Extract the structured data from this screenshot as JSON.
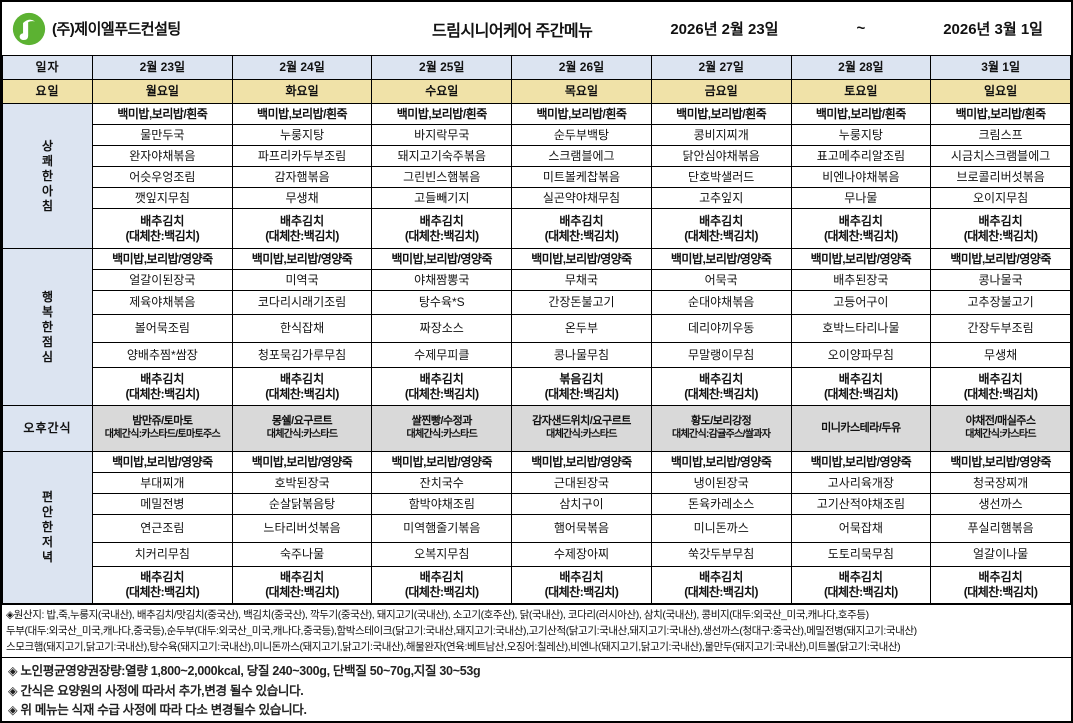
{
  "header": {
    "company": "(주)제이엘푸드컨설팅",
    "title": "드림시니어케어 주간메뉴",
    "date_start": "2026년 2월 23일",
    "tilde": "~",
    "date_end": "2026년 3월 1일",
    "logo_color": "#5cb232"
  },
  "colors": {
    "label_blue": "#dce4f1",
    "day_yellow": "#f0e2a8",
    "snack_gray": "#d9d9d9",
    "border": "#000000"
  },
  "menu": {
    "date_label": "일자",
    "day_label": "요일",
    "dates": [
      "2월 23일",
      "2월 24일",
      "2월 25일",
      "2월 26일",
      "2월 27일",
      "2월 28일",
      "3월 1일"
    ],
    "days": [
      "월요일",
      "화요일",
      "수요일",
      "목요일",
      "금요일",
      "토요일",
      "일요일"
    ],
    "breakfast": {
      "key": "breakfast",
      "label": "상쾌한아침",
      "rice": "백미밥,보리밥/흰죽",
      "dishes": [
        [
          "물만두국",
          "완자야채볶음",
          "어슷우엉조림",
          "깻잎지무침"
        ],
        [
          "누룽지탕",
          "파프리카두부조림",
          "감자햄볶음",
          "무생채"
        ],
        [
          "바지락무국",
          "돼지고기숙주볶음",
          "그린빈스햄볶음",
          "고들빼기지"
        ],
        [
          "순두부백탕",
          "스크램블에그",
          "미트볼케찹볶음",
          "실곤약야채무침"
        ],
        [
          "콩비지찌개",
          "닭안심야채볶음",
          "단호박샐러드",
          "고추잎지"
        ],
        [
          "누룽지탕",
          "표고메추리알조림",
          "비엔나야채볶음",
          "무나물"
        ],
        [
          "크림스프",
          "시금치스크램블에그",
          "브로콜리버섯볶음",
          "오이지무침"
        ]
      ],
      "kimchi": [
        {
          "main": "배추김치",
          "alt": "(대체찬:백김치)"
        },
        {
          "main": "배추김치",
          "alt": "(대체찬:백김치)"
        },
        {
          "main": "배추김치",
          "alt": "(대체찬:백김치)"
        },
        {
          "main": "배추김치",
          "alt": "(대체찬:백김치)"
        },
        {
          "main": "배추김치",
          "alt": "(대체찬:백김치)"
        },
        {
          "main": "배추김치",
          "alt": "(대체찬:백김치)"
        },
        {
          "main": "배추김치",
          "alt": "(대체찬:백김치)"
        }
      ]
    },
    "lunch": {
      "key": "lunch",
      "label": "행복한점심",
      "rice": "백미밥,보리밥/영양죽",
      "dishes": [
        [
          "얼갈이된장국",
          "제육야채볶음",
          "볼어묵조림",
          "양배추찜*쌈장"
        ],
        [
          "미역국",
          "코다리시래기조림",
          "한식잡채",
          "청포묵김가루무침"
        ],
        [
          "야채짬뽕국",
          "탕수육*S",
          "짜장소스",
          "수제무피클"
        ],
        [
          "무채국",
          "간장돈불고기",
          "온두부",
          "콩나물무침"
        ],
        [
          "어묵국",
          "순대야채볶음",
          "데리야끼우동",
          "무말랭이무침"
        ],
        [
          "배추된장국",
          "고등어구이",
          "호박느타리나물",
          "오이양파무침"
        ],
        [
          "콩나물국",
          "고추장불고기",
          "간장두부조림",
          "무생채"
        ]
      ],
      "kimchi": [
        {
          "main": "배추김치",
          "alt": "(대체찬:백김치)"
        },
        {
          "main": "배추김치",
          "alt": "(대체찬:백김치)"
        },
        {
          "main": "배추김치",
          "alt": "(대체찬:백김치)"
        },
        {
          "main": "볶음김치",
          "alt": "(대체찬:백김치)"
        },
        {
          "main": "배추김치",
          "alt": "(대체찬:백김치)"
        },
        {
          "main": "배추김치",
          "alt": "(대체찬:백김치)"
        },
        {
          "main": "배추김치",
          "alt": "(대체찬:백김치)"
        }
      ]
    },
    "snack": {
      "label": "오후간식",
      "items": [
        {
          "line1": "밤만쥬/토마토",
          "line2": "대체간식:카스타드/토마토주스"
        },
        {
          "line1": "몽쉘/요구르트",
          "line2": "대체간식:카스타드"
        },
        {
          "line1": "쌀찐빵/수정과",
          "line2": "대체간식:카스타드"
        },
        {
          "line1": "감자샌드위치/요구르트",
          "line2": "대체간식:카스타드"
        },
        {
          "line1": "황도/보리강정",
          "line2": "대체간식:감귤주스/쌀과자"
        },
        {
          "line1": "미니카스테라/두유",
          "line2": ""
        },
        {
          "line1": "야채전/매실주스",
          "line2": "대체간식:카스타드"
        }
      ]
    },
    "dinner": {
      "key": "dinner",
      "label": "편안한저녁",
      "rice": "백미밥,보리밥/영양죽",
      "dishes": [
        [
          "부대찌개",
          "메밀전병",
          "연근조림",
          "치커리무침"
        ],
        [
          "호박된장국",
          "순살닭볶음탕",
          "느타리버섯볶음",
          "숙주나물"
        ],
        [
          "잔치국수",
          "함박야채조림",
          "미역햄줄기볶음",
          "오복지무침"
        ],
        [
          "근대된장국",
          "삼치구이",
          "햄어묵볶음",
          "수제장아찌"
        ],
        [
          "냉이된장국",
          "돈육카레소스",
          "미니돈까스",
          "쑥갓두부무침"
        ],
        [
          "고사리육개장",
          "고기산적야채조림",
          "어묵잡채",
          "도토리묵무침"
        ],
        [
          "청국장찌개",
          "생선까스",
          "푸실리햄볶음",
          "얼갈이나물"
        ]
      ],
      "kimchi": [
        {
          "main": "배추김치",
          "alt": "(대체찬:백김치)"
        },
        {
          "main": "배추김치",
          "alt": "(대체찬:백김치)"
        },
        {
          "main": "배추김치",
          "alt": "(대체찬:백김치)"
        },
        {
          "main": "배추김치",
          "alt": "(대체찬:백김치)"
        },
        {
          "main": "배추김치",
          "alt": "(대체찬:백김치)"
        },
        {
          "main": "배추김치",
          "alt": "(대체찬:백김치)"
        },
        {
          "main": "배추김치",
          "alt": "(대체찬:백김치)"
        }
      ]
    }
  },
  "footer": {
    "origin": [
      "◈원산지:  밥,죽,누룽지(국내산), 배추김치/맛김치(중국산), 백김치(중국산), 깍두기(중국산), 돼지고기(국내산), 소고기(호주산), 닭(국내산), 코다리(러시아산), 삼치(국내산), 콩비지(대두:외국산_미국,캐나다,호주등)",
      "두부(대두:외국산_미국,캐나다,중국등),순두부(대두:외국산_미국,캐나다,중국등),함박스테이크(닭고기:국내산,돼지고기:국내산),고기산적(닭고기:국내산,돼지고기:국내산),생선까스(청대구:중국산),메밀전병(돼지고기:국내산)",
      "스모크햄(돼지고기,닭고기:국내산),탕수육(돼지고기:국내산),미니돈까스(돼지고기,닭고기:국내산),해물완자(연육:베트남산,오징어:칠레산),비엔나(돼지고기,닭고기:국내산),물만두(돼지고기:국내산),미트볼(닭고기:국내산)"
    ],
    "notes": [
      "◈ 노인평균영양권장량:열량 1,800~2,000kcal, 당질 240~300g, 단백질 50~70g,지질 30~53g",
      "◈ 간식은 요양원의 사정에 따라서 추가,변경 될수 있습니다.",
      "◈ 위 메뉴는 식재 수급 사정에 따라 다소 변경될수 있습니다."
    ]
  }
}
